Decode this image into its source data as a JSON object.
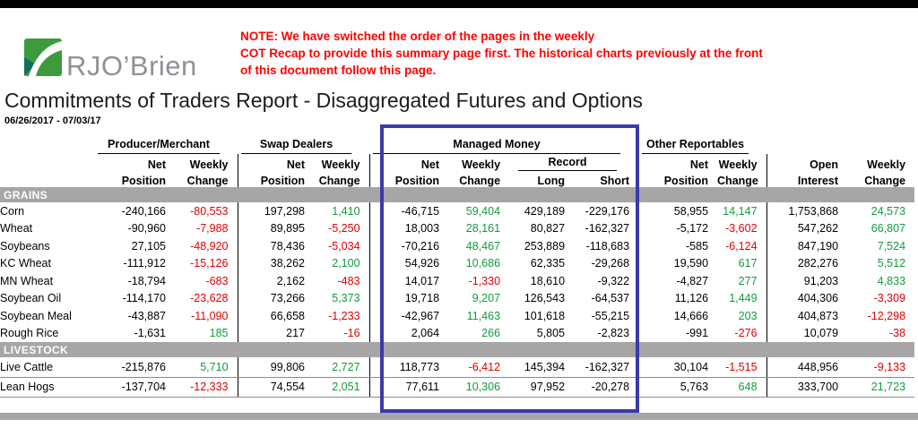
{
  "brand": {
    "logo_text": "RJO’Brien"
  },
  "note": {
    "lines": [
      "NOTE: We have switched the order of the pages in the weekly",
      "COT Recap to provide this summary page first. The historical charts previously at the front",
      "of this document follow this page."
    ]
  },
  "page": {
    "title": "Commitments of Traders Report - Disaggregated Futures and Options",
    "date_range": "06/26/2017 - 07/03/17"
  },
  "table": {
    "groups": [
      "Producer/Merchant",
      "Swap Dealers",
      "Managed Money",
      "Other Reportables"
    ],
    "headers": {
      "net": "Net",
      "weekly": "Weekly",
      "position": "Position",
      "change": "Change",
      "record": "Record",
      "long": "Long",
      "short": "Short",
      "open": "Open",
      "interest": "Interest"
    },
    "column_types": [
      "net",
      "chg",
      "net",
      "chg",
      "net",
      "chg",
      "rec",
      "rec",
      "net",
      "chg",
      "net",
      "chg"
    ],
    "column_keys": [
      "pm-net-position",
      "pm-weekly-change",
      "swap-net-position",
      "swap-weekly-change",
      "mm-net-position",
      "mm-weekly-change",
      "mm-record-long",
      "mm-record-short",
      "other-net-position",
      "other-weekly-change",
      "open-interest",
      "oi-weekly-change"
    ],
    "sections": [
      {
        "name": "GRAINS",
        "rows_bordered": false,
        "rows": [
          {
            "name": "Corn",
            "values": [
              "-240,166",
              "-80,553",
              "197,298",
              "1,410",
              "-46,715",
              "59,404",
              "429,189",
              "-229,176",
              "58,955",
              "14,147",
              "1,753,868",
              "24,573"
            ]
          },
          {
            "name": "Wheat",
            "values": [
              "-90,960",
              "-7,988",
              "89,895",
              "-5,250",
              "18,003",
              "28,161",
              "80,827",
              "-162,327",
              "-5,172",
              "-3,602",
              "547,262",
              "66,807"
            ]
          },
          {
            "name": "Soybeans",
            "values": [
              "27,105",
              "-48,920",
              "78,436",
              "-5,034",
              "-70,216",
              "48,467",
              "253,889",
              "-118,683",
              "-585",
              "-6,124",
              "847,190",
              "7,524"
            ]
          },
          {
            "name": "KC Wheat",
            "values": [
              "-111,912",
              "-15,126",
              "38,262",
              "2,100",
              "54,926",
              "10,686",
              "62,335",
              "-29,268",
              "19,590",
              "617",
              "282,276",
              "5,512"
            ]
          },
          {
            "name": "MN Wheat",
            "values": [
              "-18,794",
              "-683",
              "2,162",
              "-483",
              "14,017",
              "-1,330",
              "18,610",
              "-9,322",
              "-4,827",
              "277",
              "91,203",
              "4,833"
            ]
          },
          {
            "name": "Soybean Oil",
            "values": [
              "-114,170",
              "-23,628",
              "73,266",
              "5,373",
              "19,718",
              "9,207",
              "126,543",
              "-64,537",
              "11,126",
              "1,449",
              "404,306",
              "-3,309"
            ]
          },
          {
            "name": "Soybean Meal",
            "values": [
              "-43,887",
              "-11,090",
              "66,658",
              "-1,233",
              "-42,967",
              "11,463",
              "101,618",
              "-55,215",
              "14,666",
              "203",
              "404,873",
              "-12,298"
            ]
          },
          {
            "name": "Rough Rice",
            "values": [
              "-1,631",
              "185",
              "217",
              "-16",
              "2,064",
              "266",
              "5,805",
              "-2,823",
              "-991",
              "-276",
              "10,079",
              "-38"
            ]
          }
        ]
      },
      {
        "name": "LIVESTOCK",
        "rows_bordered": true,
        "rows": [
          {
            "name": "Live Cattle",
            "values": [
              "-215,876",
              "5,710",
              "99,806",
              "2,727",
              "118,773",
              "-6,412",
              "145,394",
              "-162,327",
              "30,104",
              "-1,515",
              "448,956",
              "-9,133"
            ]
          },
          {
            "name": "Lean Hogs",
            "values": [
              "-137,704",
              "-12,333",
              "74,554",
              "2,051",
              "77,611",
              "10,306",
              "97,952",
              "-20,278",
              "5,763",
              "648",
              "333,700",
              "21,723"
            ]
          }
        ]
      }
    ]
  },
  "colors": {
    "positive": "#109c3c",
    "negative": "#e00000",
    "note_red": "#ff0000",
    "section_bar": "#a6a6a6",
    "highlight_box": "#3a3aad",
    "logo_green": "#3d9b3d",
    "logo_teal": "#0f6e62"
  }
}
